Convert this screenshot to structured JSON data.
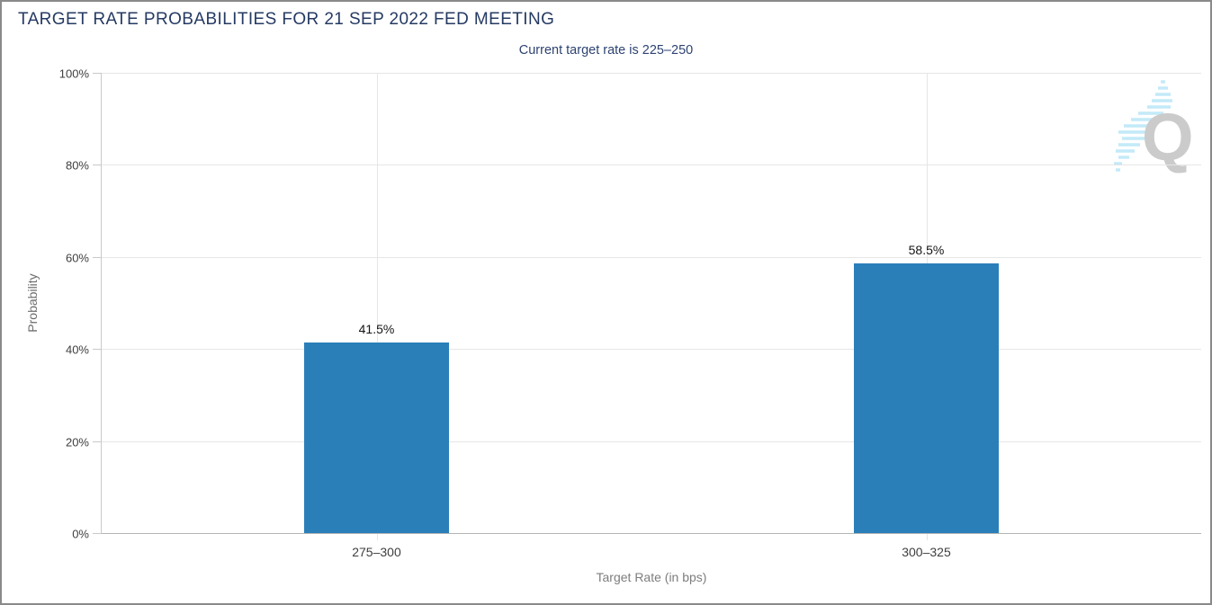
{
  "header": {
    "title": "TARGET RATE PROBABILITIES FOR 21 SEP 2022 FED MEETING",
    "subtitle": "Current target rate is 225–250"
  },
  "chart_data": {
    "type": "bar",
    "title": "TARGET RATE PROBABILITIES FOR 21 SEP 2022 FED MEETING",
    "subtitle": "Current target rate is 225–250",
    "categories": [
      "275–300",
      "300–325"
    ],
    "values": [
      41.5,
      58.5
    ],
    "value_labels": [
      "41.5%",
      "58.5%"
    ],
    "xlabel": "Target Rate (in bps)",
    "ylabel": "Probability",
    "ylim": [
      0,
      100
    ],
    "yticks": [
      0,
      20,
      40,
      60,
      80,
      100
    ],
    "ytick_labels": [
      "0%",
      "20%",
      "40%",
      "60%",
      "80%",
      "100%"
    ],
    "grid": true,
    "legend": false,
    "bar_color": "#2a7fb9",
    "bar_width_pct": 13.25
  },
  "colors": {
    "title_text": "#253a63",
    "subtitle_text": "#2e4372",
    "bar": "#2a7fb9",
    "gridline": "#e6e6e6",
    "axis_line": "#c9c9c9",
    "baseline": "#b5b5b5",
    "frame_border": "#8a8a8a",
    "watermark_q": "#cbcbcb",
    "watermark_dashes": "#c3eaf8"
  },
  "watermark": {
    "letter": "Q"
  }
}
